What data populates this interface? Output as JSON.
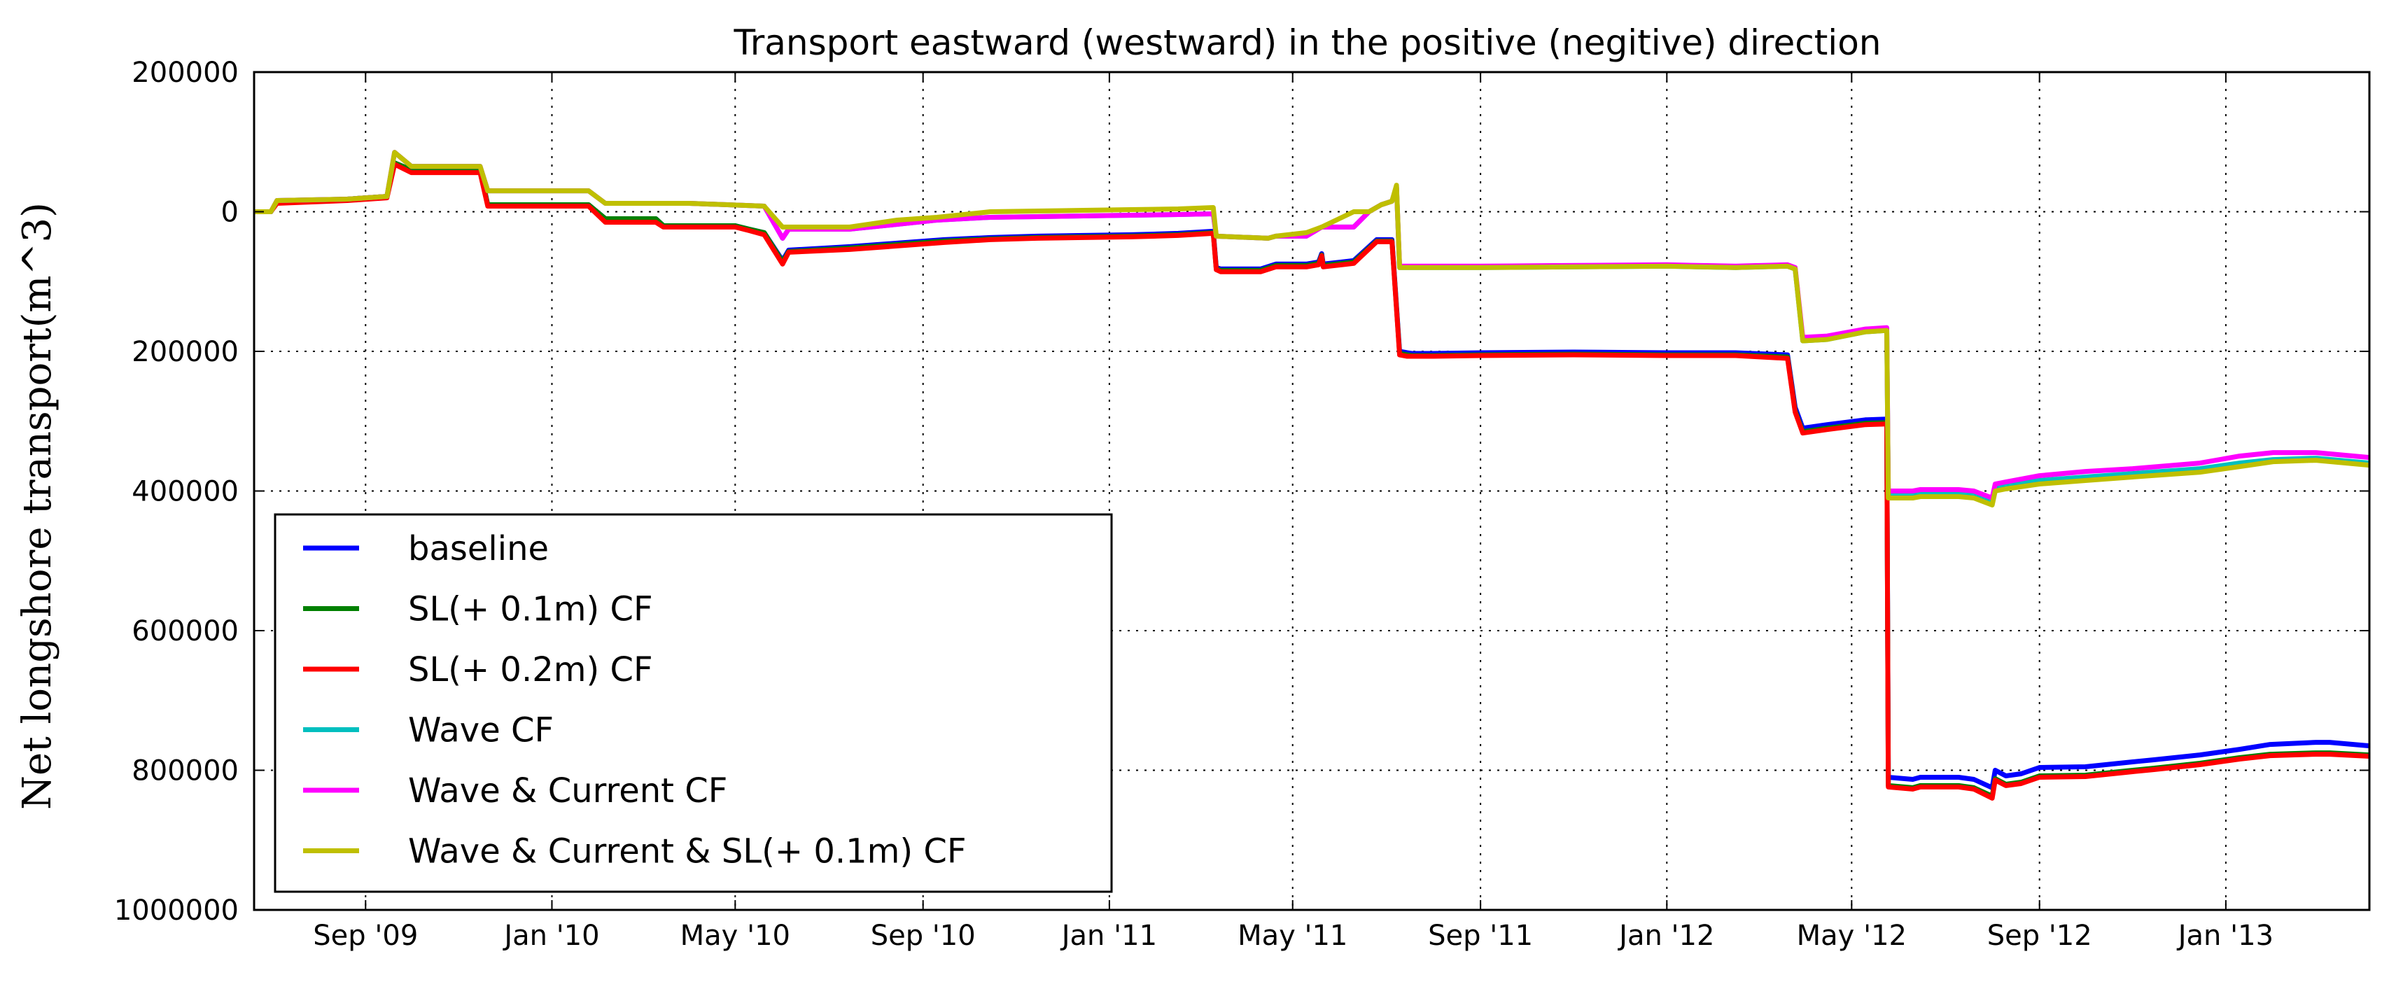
{
  "chart_data": {
    "type": "line",
    "title": "Transport eastward (westward) in the positive (negitive) direction",
    "xlabel": "",
    "ylabel": "Net longshore transport(m^3)",
    "x_tick_labels": [
      "Sep '09",
      "Jan '10",
      "May '10",
      "Sep '10",
      "Jan '11",
      "May '11",
      "Sep '11",
      "Jan '12",
      "May '12",
      "Sep '12",
      "Jan '13"
    ],
    "y_tick_labels": [
      "200000",
      "0",
      "200000",
      "400000",
      "600000",
      "800000",
      "1000000"
    ],
    "y_tick_values": [
      200000,
      0,
      -200000,
      -400000,
      -600000,
      -800000,
      -1000000
    ],
    "xlim": [
      "2009-06-20",
      "2013-04-05"
    ],
    "ylim": [
      -1000000,
      200000
    ],
    "grid": true,
    "legend_position": "lower-left",
    "series": [
      {
        "name": "baseline",
        "color": "#0000ff",
        "x": [
          "2009-06-20",
          "2009-07-01",
          "2009-07-05",
          "2009-08-20",
          "2009-09-15",
          "2009-09-20",
          "2009-10-01",
          "2009-11-15",
          "2009-11-20",
          "2010-01-25",
          "2010-02-05",
          "2010-03-10",
          "2010-03-15",
          "2010-05-01",
          "2010-05-10",
          "2010-05-20",
          "2010-06-01",
          "2010-06-05",
          "2010-07-15",
          "2010-08-15",
          "2010-09-15",
          "2010-10-15",
          "2010-11-15",
          "2010-12-15",
          "2011-01-15",
          "2011-02-15",
          "2011-03-10",
          "2011-03-12",
          "2011-03-15",
          "2011-04-10",
          "2011-04-20",
          "2011-05-10",
          "2011-05-18",
          "2011-05-20",
          "2011-05-21",
          "2011-06-10",
          "2011-06-25",
          "2011-07-05",
          "2011-07-10",
          "2011-07-15",
          "2011-07-18",
          "2011-08-01",
          "2011-09-01",
          "2011-11-01",
          "2012-01-01",
          "2012-02-15",
          "2012-03-20",
          "2012-03-25",
          "2012-03-30",
          "2012-04-15",
          "2012-05-10",
          "2012-05-24",
          "2012-05-25",
          "2012-06-10",
          "2012-06-15",
          "2012-07-10",
          "2012-07-20",
          "2012-08-01",
          "2012-08-03",
          "2012-08-10",
          "2012-08-20",
          "2012-09-01",
          "2012-10-01",
          "2012-11-01",
          "2012-11-15",
          "2012-12-15",
          "2013-01-10",
          "2013-01-30",
          "2013-03-01",
          "2013-03-10",
          "2013-04-05"
        ],
        "values": [
          0,
          0,
          14000,
          18000,
          22000,
          70000,
          60000,
          60000,
          10000,
          10000,
          -10000,
          -10000,
          -20000,
          -20000,
          -25000,
          -30000,
          -70000,
          -55000,
          -50000,
          -45000,
          -40000,
          -37000,
          -35000,
          -34000,
          -33000,
          -31000,
          -28000,
          -80000,
          -82000,
          -82000,
          -75000,
          -75000,
          -72000,
          -60000,
          -75000,
          -70000,
          -40000,
          -40000,
          -200000,
          -202000,
          -203000,
          -203000,
          -202000,
          -201000,
          -202000,
          -202000,
          -205000,
          -280000,
          -310000,
          -305000,
          -298000,
          -297000,
          -810000,
          -813000,
          -810000,
          -810000,
          -813000,
          -825000,
          -800000,
          -808000,
          -805000,
          -796000,
          -795000,
          -788000,
          -785000,
          -778000,
          -770000,
          -763000,
          -760000,
          -760000,
          -765000
        ]
      },
      {
        "name": "SL(+ 0.1m) CF",
        "color": "#008000",
        "x": [
          "2009-06-20",
          "2009-07-01",
          "2009-07-05",
          "2009-08-20",
          "2009-09-15",
          "2009-09-20",
          "2009-10-01",
          "2009-11-15",
          "2009-11-20",
          "2010-01-25",
          "2010-02-05",
          "2010-03-10",
          "2010-03-15",
          "2010-05-01",
          "2010-05-10",
          "2010-05-20",
          "2010-06-01",
          "2010-06-05",
          "2010-07-15",
          "2010-08-15",
          "2010-09-15",
          "2010-10-15",
          "2010-11-15",
          "2010-12-15",
          "2011-01-15",
          "2011-02-15",
          "2011-03-10",
          "2011-03-12",
          "2011-03-15",
          "2011-04-10",
          "2011-04-20",
          "2011-05-10",
          "2011-05-18",
          "2011-05-20",
          "2011-05-21",
          "2011-06-10",
          "2011-06-25",
          "2011-07-05",
          "2011-07-10",
          "2011-07-15",
          "2011-07-18",
          "2011-08-01",
          "2011-09-01",
          "2011-11-01",
          "2012-01-01",
          "2012-02-15",
          "2012-03-20",
          "2012-03-25",
          "2012-03-30",
          "2012-04-15",
          "2012-05-10",
          "2012-05-24",
          "2012-05-25",
          "2012-06-10",
          "2012-06-15",
          "2012-07-10",
          "2012-07-20",
          "2012-08-01",
          "2012-08-03",
          "2012-08-10",
          "2012-08-20",
          "2012-09-01",
          "2012-10-01",
          "2012-11-01",
          "2012-11-15",
          "2012-12-15",
          "2013-01-10",
          "2013-01-30",
          "2013-03-01",
          "2013-03-10",
          "2013-04-05"
        ],
        "values": [
          0,
          0,
          14000,
          18000,
          22000,
          70000,
          60000,
          60000,
          10000,
          10000,
          -10000,
          -10000,
          -20000,
          -20000,
          -25000,
          -30000,
          -72000,
          -57000,
          -52000,
          -47000,
          -42000,
          -39000,
          -37000,
          -36000,
          -35000,
          -33000,
          -30000,
          -82000,
          -84000,
          -84000,
          -77000,
          -77000,
          -74000,
          -62000,
          -77000,
          -72000,
          -42000,
          -42000,
          -203000,
          -205000,
          -206000,
          -206000,
          -205000,
          -204000,
          -205000,
          -205000,
          -208000,
          -285000,
          -315000,
          -310000,
          -303000,
          -302000,
          -822000,
          -825000,
          -822000,
          -822000,
          -825000,
          -837000,
          -812000,
          -820000,
          -817000,
          -808000,
          -807000,
          -800000,
          -797000,
          -790000,
          -782000,
          -777000,
          -775000,
          -775000,
          -778000
        ]
      },
      {
        "name": "SL(+ 0.2m) CF",
        "color": "#ff0000",
        "x": [
          "2009-06-20",
          "2009-07-01",
          "2009-07-05",
          "2009-08-20",
          "2009-09-15",
          "2009-09-20",
          "2009-10-01",
          "2009-11-15",
          "2009-11-20",
          "2010-01-25",
          "2010-02-05",
          "2010-03-10",
          "2010-03-15",
          "2010-05-01",
          "2010-05-10",
          "2010-05-20",
          "2010-06-01",
          "2010-06-05",
          "2010-07-15",
          "2010-08-15",
          "2010-09-15",
          "2010-10-15",
          "2010-11-15",
          "2010-12-15",
          "2011-01-15",
          "2011-02-15",
          "2011-03-10",
          "2011-03-12",
          "2011-03-15",
          "2011-04-10",
          "2011-04-20",
          "2011-05-10",
          "2011-05-18",
          "2011-05-20",
          "2011-05-21",
          "2011-06-10",
          "2011-06-25",
          "2011-07-05",
          "2011-07-10",
          "2011-07-15",
          "2011-07-18",
          "2011-08-01",
          "2011-09-01",
          "2011-11-01",
          "2012-01-01",
          "2012-02-15",
          "2012-03-20",
          "2012-03-25",
          "2012-03-30",
          "2012-04-15",
          "2012-05-10",
          "2012-05-24",
          "2012-05-25",
          "2012-06-10",
          "2012-06-15",
          "2012-07-10",
          "2012-07-20",
          "2012-08-01",
          "2012-08-03",
          "2012-08-10",
          "2012-08-20",
          "2012-09-01",
          "2012-10-01",
          "2012-11-01",
          "2012-11-15",
          "2012-12-15",
          "2013-01-10",
          "2013-01-30",
          "2013-03-01",
          "2013-03-10",
          "2013-04-05"
        ],
        "values": [
          0,
          0,
          12000,
          16000,
          20000,
          68000,
          56000,
          56000,
          8000,
          8000,
          -15000,
          -15000,
          -22000,
          -22000,
          -27000,
          -33000,
          -75000,
          -58000,
          -54000,
          -49000,
          -44000,
          -40000,
          -38000,
          -37000,
          -36000,
          -34000,
          -31000,
          -83000,
          -86000,
          -86000,
          -79000,
          -79000,
          -76000,
          -63000,
          -79000,
          -74000,
          -43000,
          -43000,
          -205000,
          -207000,
          -207000,
          -207000,
          -206000,
          -205000,
          -206000,
          -206000,
          -210000,
          -287000,
          -317000,
          -312000,
          -305000,
          -304000,
          -824000,
          -827000,
          -824000,
          -824000,
          -827000,
          -840000,
          -814000,
          -822000,
          -819000,
          -810000,
          -809000,
          -802000,
          -799000,
          -792000,
          -784000,
          -779000,
          -777000,
          -777000,
          -780000
        ]
      },
      {
        "name": "Wave CF",
        "color": "#00bfbf",
        "x": [
          "2009-06-20",
          "2009-07-01",
          "2009-07-05",
          "2009-08-20",
          "2009-09-15",
          "2009-09-20",
          "2009-10-01",
          "2009-11-15",
          "2009-11-20",
          "2010-01-25",
          "2010-02-05",
          "2010-04-01",
          "2010-05-20",
          "2010-06-01",
          "2010-06-05",
          "2010-07-15",
          "2010-08-15",
          "2010-09-10",
          "2010-10-15",
          "2010-12-15",
          "2011-01-15",
          "2011-02-15",
          "2011-03-10",
          "2011-03-12",
          "2011-04-15",
          "2011-04-20",
          "2011-05-10",
          "2011-05-20",
          "2011-06-10",
          "2011-06-20",
          "2011-06-28",
          "2011-07-05",
          "2011-07-08",
          "2011-07-10",
          "2011-09-01",
          "2011-11-01",
          "2012-01-01",
          "2012-02-15",
          "2012-03-20",
          "2012-03-25",
          "2012-03-30",
          "2012-04-15",
          "2012-05-10",
          "2012-05-24",
          "2012-05-25",
          "2012-06-10",
          "2012-06-15",
          "2012-07-10",
          "2012-07-20",
          "2012-08-01",
          "2012-08-03",
          "2012-08-10",
          "2012-09-01",
          "2012-10-01",
          "2012-11-01",
          "2012-12-15",
          "2013-01-10",
          "2013-02-01",
          "2013-03-01",
          "2013-04-05"
        ],
        "values": [
          0,
          0,
          16000,
          18000,
          22000,
          85000,
          65000,
          65000,
          30000,
          30000,
          12000,
          12000,
          8000,
          -38000,
          -25000,
          -25000,
          -18000,
          -12000,
          -8000,
          -6000,
          -5000,
          -4000,
          -3000,
          -35000,
          -38000,
          -35000,
          -35000,
          -22000,
          -22000,
          0,
          10000,
          15000,
          35000,
          -80000,
          -80000,
          -79000,
          -78000,
          -80000,
          -78000,
          -82000,
          -185000,
          -183000,
          -172000,
          -170000,
          -405000,
          -405000,
          -403000,
          -403000,
          -405000,
          -415000,
          -395000,
          -392000,
          -385000,
          -380000,
          -375000,
          -368000,
          -360000,
          -355000,
          -353000,
          -360000
        ]
      },
      {
        "name": "Wave & Current CF",
        "color": "#ff00ff",
        "x": [
          "2009-06-20",
          "2009-07-01",
          "2009-07-05",
          "2009-08-20",
          "2009-09-15",
          "2009-09-20",
          "2009-10-01",
          "2009-11-15",
          "2009-11-20",
          "2010-01-25",
          "2010-02-05",
          "2010-04-01",
          "2010-05-20",
          "2010-06-01",
          "2010-06-05",
          "2010-07-15",
          "2010-08-15",
          "2010-09-10",
          "2010-10-15",
          "2010-12-15",
          "2011-01-15",
          "2011-02-15",
          "2011-03-10",
          "2011-03-12",
          "2011-04-15",
          "2011-04-20",
          "2011-05-10",
          "2011-05-20",
          "2011-06-10",
          "2011-06-20",
          "2011-06-28",
          "2011-07-05",
          "2011-07-08",
          "2011-07-10",
          "2011-09-01",
          "2011-11-01",
          "2012-01-01",
          "2012-02-15",
          "2012-03-20",
          "2012-03-25",
          "2012-03-30",
          "2012-04-15",
          "2012-05-10",
          "2012-05-24",
          "2012-05-25",
          "2012-06-10",
          "2012-06-15",
          "2012-07-10",
          "2012-07-20",
          "2012-08-01",
          "2012-08-03",
          "2012-08-10",
          "2012-09-01",
          "2012-10-01",
          "2012-11-01",
          "2012-12-15",
          "2013-01-10",
          "2013-02-01",
          "2013-03-01",
          "2013-04-05"
        ],
        "values": [
          0,
          0,
          16000,
          18000,
          22000,
          85000,
          65000,
          65000,
          30000,
          30000,
          12000,
          12000,
          8000,
          -38000,
          -25000,
          -25000,
          -18000,
          -12000,
          -8000,
          -6000,
          -5000,
          -4000,
          -3000,
          -35000,
          -38000,
          -35000,
          -35000,
          -22000,
          -22000,
          0,
          10000,
          15000,
          35000,
          -78000,
          -78000,
          -77000,
          -76000,
          -78000,
          -76000,
          -80000,
          -180000,
          -178000,
          -168000,
          -166000,
          -400000,
          -400000,
          -398000,
          -398000,
          -400000,
          -410000,
          -390000,
          -387000,
          -378000,
          -372000,
          -368000,
          -360000,
          -350000,
          -345000,
          -345000,
          -352000
        ]
      },
      {
        "name": "Wave & Current & SL(+ 0.1m) CF",
        "color": "#bfbf00",
        "x": [
          "2009-06-20",
          "2009-07-01",
          "2009-07-05",
          "2009-08-20",
          "2009-09-15",
          "2009-09-20",
          "2009-10-01",
          "2009-11-15",
          "2009-11-20",
          "2010-01-25",
          "2010-02-05",
          "2010-04-01",
          "2010-05-20",
          "2010-06-01",
          "2010-06-05",
          "2010-07-15",
          "2010-08-15",
          "2010-09-10",
          "2010-10-15",
          "2010-12-15",
          "2011-01-15",
          "2011-02-15",
          "2011-03-10",
          "2011-03-12",
          "2011-04-15",
          "2011-04-20",
          "2011-05-10",
          "2011-05-20",
          "2011-06-10",
          "2011-06-20",
          "2011-06-28",
          "2011-07-05",
          "2011-07-08",
          "2011-07-10",
          "2011-09-01",
          "2011-11-01",
          "2012-01-01",
          "2012-02-15",
          "2012-03-20",
          "2012-03-25",
          "2012-03-30",
          "2012-04-15",
          "2012-05-10",
          "2012-05-24",
          "2012-05-25",
          "2012-06-10",
          "2012-06-15",
          "2012-07-10",
          "2012-07-20",
          "2012-08-01",
          "2012-08-03",
          "2012-08-10",
          "2012-09-01",
          "2012-10-01",
          "2012-11-01",
          "2012-12-15",
          "2013-01-10",
          "2013-02-01",
          "2013-03-01",
          "2013-04-05"
        ],
        "values": [
          0,
          0,
          16000,
          18000,
          22000,
          85000,
          65000,
          65000,
          30000,
          30000,
          12000,
          12000,
          8000,
          -22000,
          -22000,
          -22000,
          -12000,
          -8000,
          0,
          2000,
          3000,
          4000,
          6000,
          -35000,
          -38000,
          -35000,
          -30000,
          -22000,
          0,
          0,
          10000,
          15000,
          38000,
          -80000,
          -80000,
          -79000,
          -78000,
          -80000,
          -78000,
          -82000,
          -185000,
          -183000,
          -172000,
          -170000,
          -410000,
          -410000,
          -408000,
          -408000,
          -410000,
          -420000,
          -400000,
          -397000,
          -390000,
          -385000,
          -380000,
          -373000,
          -365000,
          -358000,
          -356000,
          -363000
        ]
      }
    ]
  }
}
